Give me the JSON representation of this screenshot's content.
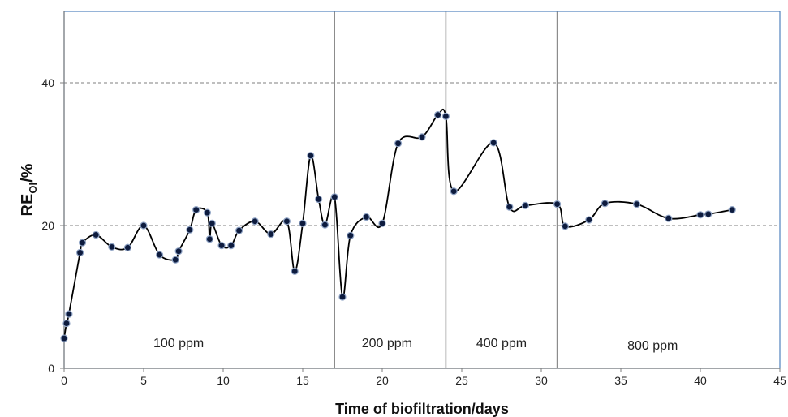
{
  "chart_data": {
    "type": "line",
    "title": "",
    "xlabel": "Time of biofiltration/days",
    "ylabel": {
      "main": "RE",
      "sub": "OI",
      "suffix": "/%"
    },
    "xlim": [
      0,
      45
    ],
    "ylim": [
      0,
      50
    ],
    "xticks": [
      0,
      5,
      10,
      15,
      20,
      25,
      30,
      35,
      40,
      45
    ],
    "yticks": [
      0,
      20,
      40
    ],
    "grid": {
      "y": true,
      "style": "dashed",
      "lines": [
        20,
        40
      ]
    },
    "legend": "none",
    "phase_boundaries": [
      17,
      24,
      31
    ],
    "phases": [
      {
        "label": "100 ppm",
        "x": 7.2,
        "y": 3.5
      },
      {
        "label": "200 ppm",
        "x": 20.3,
        "y": 3.5
      },
      {
        "label": "400 ppm",
        "x": 27.5,
        "y": 3.5
      },
      {
        "label": "800 ppm",
        "x": 37.0,
        "y": 3.2
      }
    ],
    "series": [
      {
        "color": "#000000",
        "marker_fill": "#0d1b3e",
        "points": [
          [
            0,
            4.2
          ],
          [
            0.15,
            6.3
          ],
          [
            0.3,
            7.6
          ],
          [
            1.0,
            16.2
          ],
          [
            1.15,
            17.6
          ],
          [
            2.0,
            18.7
          ],
          [
            3.0,
            17.0
          ],
          [
            4.0,
            16.9
          ],
          [
            5.0,
            20.0
          ],
          [
            6.0,
            15.9
          ],
          [
            7.0,
            15.2
          ],
          [
            7.2,
            16.4
          ],
          [
            7.9,
            19.4
          ],
          [
            8.3,
            22.2
          ],
          [
            9.0,
            21.8
          ],
          [
            9.15,
            18.1
          ],
          [
            9.3,
            20.3
          ],
          [
            9.9,
            17.2
          ],
          [
            10.5,
            17.2
          ],
          [
            11.0,
            19.3
          ],
          [
            12.0,
            20.6
          ],
          [
            13.0,
            18.8
          ],
          [
            14.0,
            20.6
          ],
          [
            14.5,
            13.6
          ],
          [
            15.0,
            20.3
          ],
          [
            15.5,
            29.8
          ],
          [
            16.0,
            23.7
          ],
          [
            16.4,
            20.1
          ],
          [
            17.0,
            24.0
          ],
          [
            17.5,
            10.0
          ],
          [
            18.0,
            18.6
          ],
          [
            19.0,
            21.2
          ],
          [
            20.0,
            20.3
          ],
          [
            21.0,
            31.5
          ],
          [
            22.5,
            32.4
          ],
          [
            23.5,
            35.5
          ],
          [
            24.0,
            35.3
          ],
          [
            24.5,
            24.8
          ],
          [
            27.0,
            31.6
          ],
          [
            28.0,
            22.6
          ],
          [
            29.0,
            22.8
          ],
          [
            31.0,
            23.0
          ],
          [
            31.5,
            19.9
          ],
          [
            33.0,
            20.8
          ],
          [
            34.0,
            23.1
          ],
          [
            36.0,
            23.0
          ],
          [
            38.0,
            21.0
          ],
          [
            40.0,
            21.5
          ],
          [
            40.5,
            21.6
          ],
          [
            42.0,
            22.2
          ]
        ]
      }
    ]
  }
}
